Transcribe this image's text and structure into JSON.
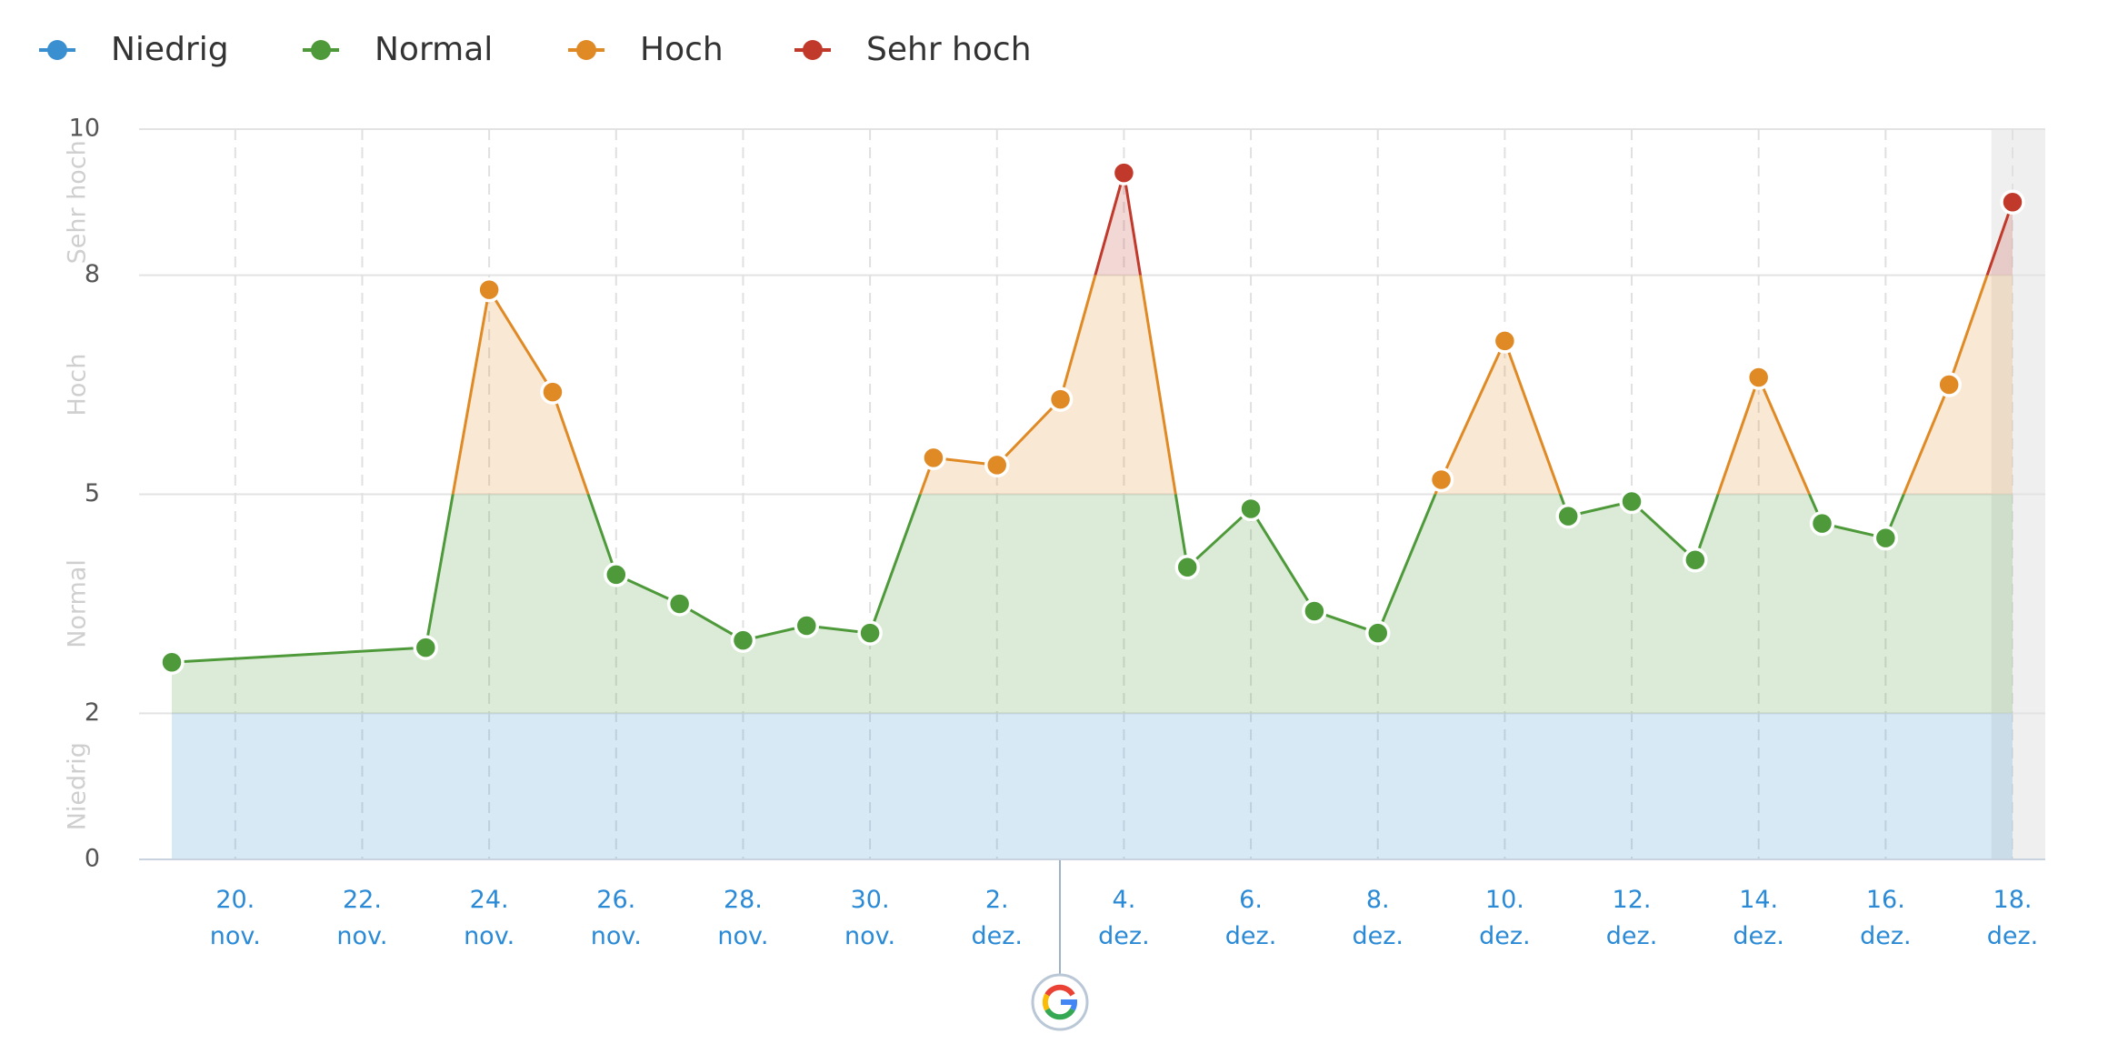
{
  "chart_data": {
    "type": "line",
    "levels": [
      {
        "name": "Niedrig",
        "color": "#3a8fd1",
        "range": [
          0,
          2
        ]
      },
      {
        "name": "Normal",
        "color": "#4e9a3a",
        "range": [
          2,
          5
        ]
      },
      {
        "name": "Hoch",
        "color": "#e08a25",
        "range": [
          5,
          8
        ]
      },
      {
        "name": "Sehr hoch",
        "color": "#c0392b",
        "range": [
          8,
          10
        ]
      }
    ],
    "x": [
      "19. nov.",
      "23. nov.",
      "24. nov.",
      "25. nov.",
      "26. nov.",
      "27. nov.",
      "28. nov.",
      "29. nov.",
      "30. nov.",
      "1. dez.",
      "2. dez.",
      "3. dez.",
      "4. dez.",
      "5. dez.",
      "6. dez.",
      "7. dez.",
      "8. dez.",
      "9. dez.",
      "10. dez.",
      "11. dez.",
      "12. dez.",
      "13. dez.",
      "14. dez.",
      "15. dez.",
      "16. dez.",
      "17. dez.",
      "18. dez."
    ],
    "values": [
      2.7,
      2.9,
      7.8,
      6.4,
      3.9,
      3.5,
      3.0,
      3.2,
      3.1,
      5.5,
      5.4,
      6.3,
      9.4,
      4.0,
      4.8,
      3.4,
      3.1,
      5.2,
      7.1,
      4.7,
      4.9,
      4.1,
      6.6,
      4.6,
      4.4,
      6.5,
      9.0
    ],
    "xticks": [
      "20.\nnov.",
      "22.\nnov.",
      "24.\nnov.",
      "26.\nnov.",
      "28.\nnov.",
      "30.\nnov.",
      "2.\ndez.",
      "4.\ndez.",
      "6.\ndez.",
      "8.\ndez.",
      "10.\ndez.",
      "12.\ndez.",
      "14.\ndez.",
      "16.\ndez.",
      "18.\ndez."
    ],
    "ylim": [
      0,
      10
    ],
    "yticks": [
      0,
      2,
      5,
      8,
      10
    ],
    "grid": true
  }
}
